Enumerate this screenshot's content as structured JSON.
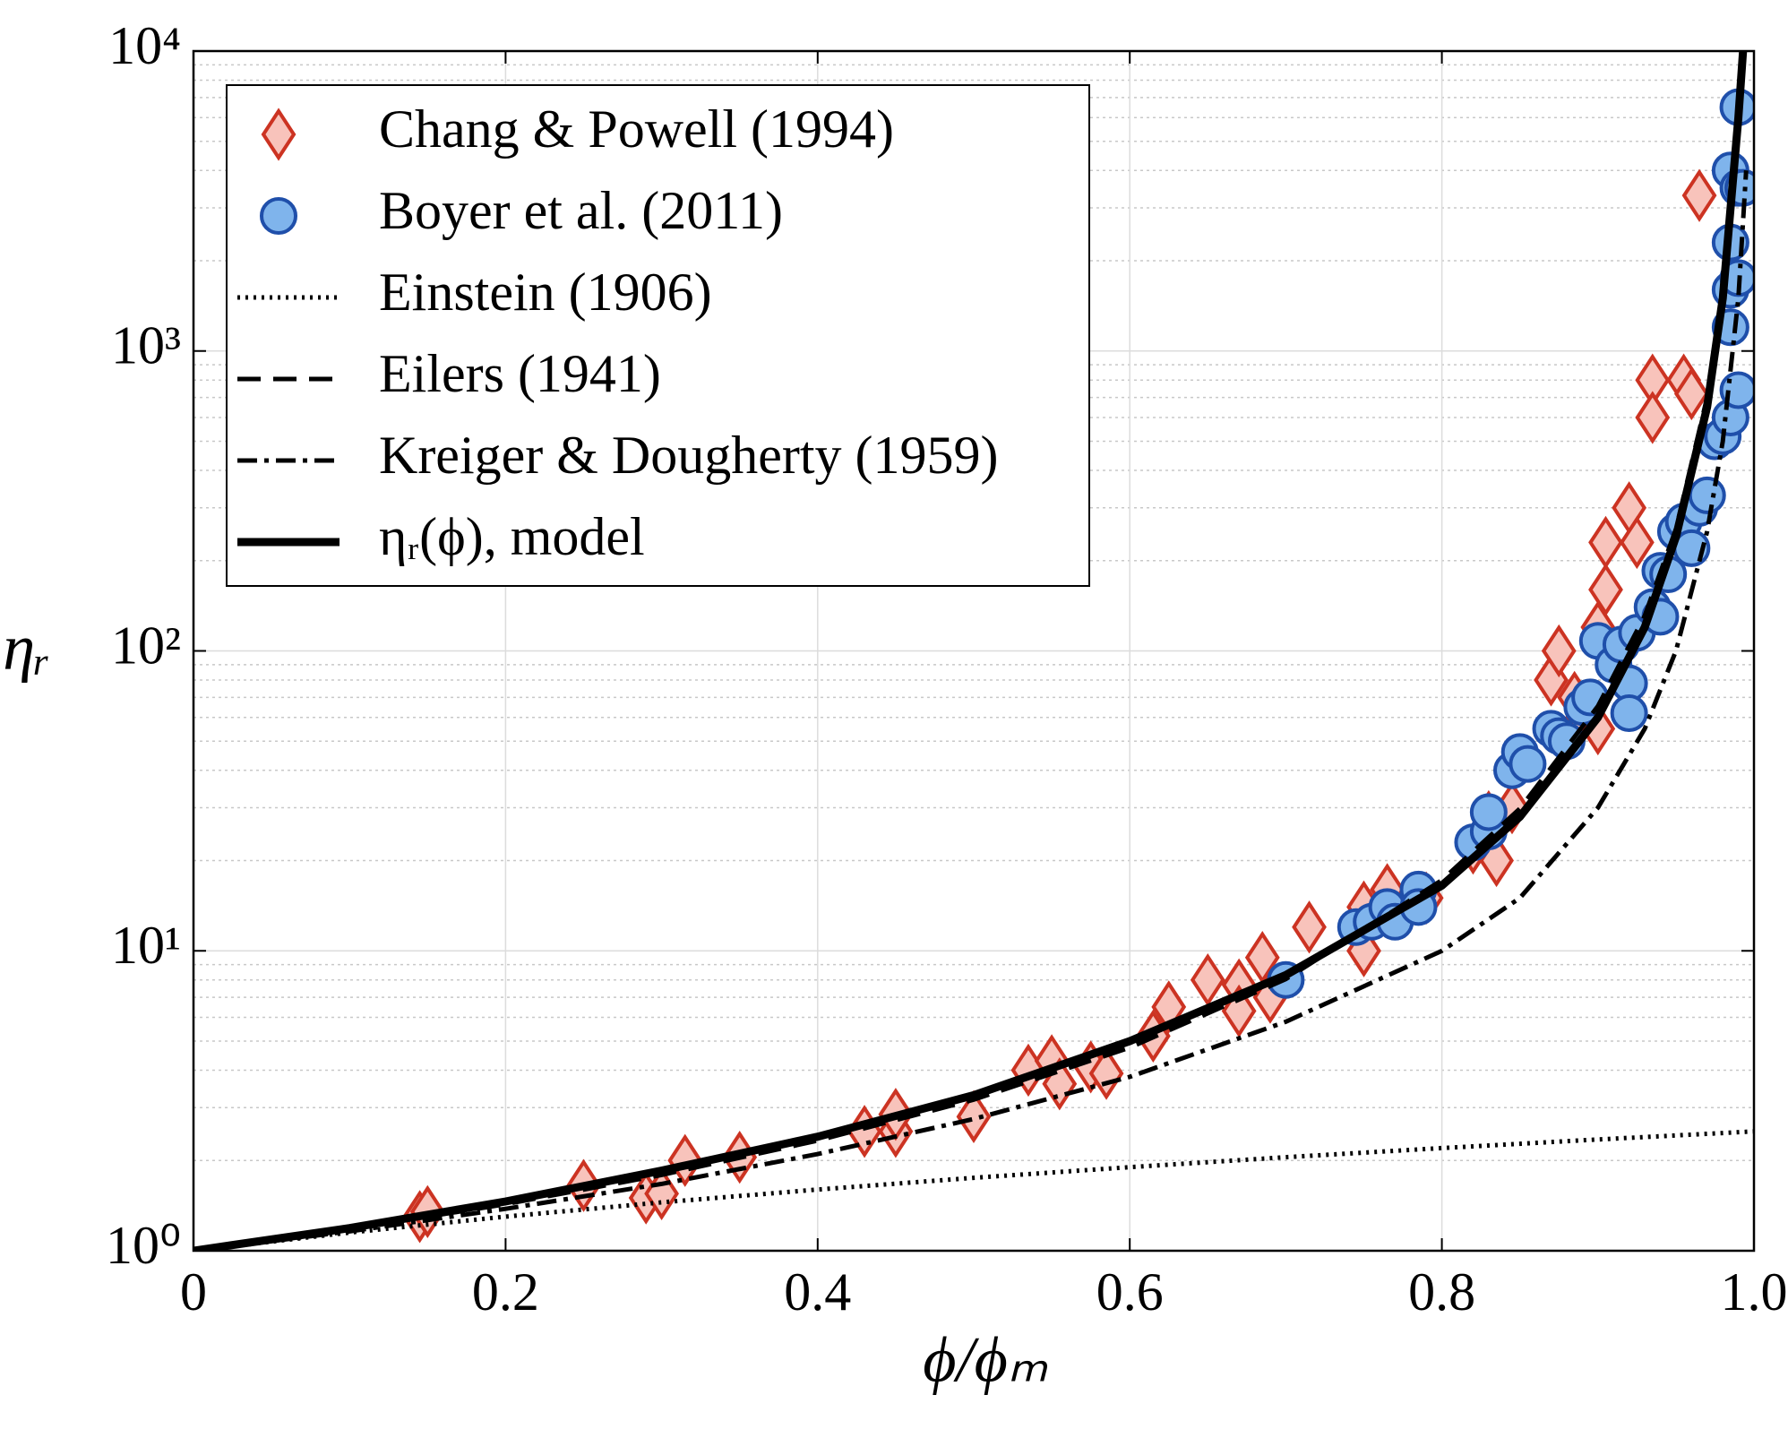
{
  "chart_data": {
    "type": "scatter",
    "xlabel": "ϕ/ϕₘ",
    "ylabel": "ηᵣ",
    "xlim": [
      0,
      1
    ],
    "xticks": [
      0,
      0.2,
      0.4,
      0.6,
      0.8,
      {
        "value": 1,
        "label": "1.0"
      }
    ],
    "ylim": [
      1,
      10000
    ],
    "log_y": true,
    "yticks": [
      {
        "value": 1,
        "label": "10⁰"
      },
      {
        "value": 10,
        "label": "10¹"
      },
      {
        "value": 100,
        "label": "10²"
      },
      {
        "value": 1000,
        "label": "10³"
      },
      {
        "value": 10000,
        "label": "10⁴"
      }
    ],
    "grid": true,
    "minor_grid": true,
    "legend": "upper left",
    "series": [
      {
        "name": "Chang & Powell (1994)",
        "marker": "diamond",
        "color": "#cc3322",
        "fill": "#f8c3bb",
        "x": [
          0.145,
          0.15,
          0.25,
          0.29,
          0.3,
          0.315,
          0.35,
          0.43,
          0.45,
          0.45,
          0.5,
          0.535,
          0.55,
          0.555,
          0.575,
          0.585,
          0.615,
          0.625,
          0.65,
          0.67,
          0.67,
          0.685,
          0.69,
          0.715,
          0.75,
          0.75,
          0.765,
          0.79,
          0.82,
          0.83,
          0.835,
          0.845,
          0.87,
          0.875,
          0.885,
          0.89,
          0.9,
          0.9,
          0.905,
          0.905,
          0.92,
          0.925,
          0.935,
          0.935,
          0.955,
          0.96,
          0.965
        ],
        "values": [
          1.3,
          1.35,
          1.65,
          1.5,
          1.55,
          2.0,
          2.05,
          2.5,
          2.5,
          2.85,
          2.8,
          4.0,
          4.3,
          3.6,
          4.1,
          3.9,
          5.2,
          6.5,
          8.0,
          7.7,
          6.3,
          9.5,
          7.0,
          12,
          14,
          10,
          16,
          15,
          22,
          28,
          20,
          30,
          80,
          100,
          70,
          60,
          55,
          120,
          160,
          230,
          300,
          230,
          800,
          600,
          800,
          720,
          3300
        ]
      },
      {
        "name": "Boyer et al. (2011)",
        "marker": "circle",
        "color": "#1f4faa",
        "fill": "#7fb4ec",
        "x": [
          0.7,
          0.745,
          0.755,
          0.765,
          0.77,
          0.785,
          0.785,
          0.82,
          0.83,
          0.83,
          0.845,
          0.85,
          0.855,
          0.87,
          0.875,
          0.88,
          0.89,
          0.895,
          0.9,
          0.91,
          0.915,
          0.92,
          0.92,
          0.925,
          0.935,
          0.94,
          0.94,
          0.945,
          0.95,
          0.955,
          0.96,
          0.965,
          0.97,
          0.975,
          0.98,
          0.985,
          0.99,
          0.985,
          0.985,
          0.99,
          0.985,
          0.985,
          0.99,
          0.993,
          0.99
        ],
        "values": [
          8,
          12,
          12.5,
          14,
          12.5,
          16,
          14,
          23,
          25,
          29,
          40,
          46,
          42,
          55,
          52,
          50,
          65,
          70,
          108,
          90,
          105,
          78,
          62,
          115,
          140,
          185,
          130,
          180,
          250,
          270,
          220,
          300,
          330,
          500,
          520,
          600,
          740,
          1200,
          1600,
          1750,
          2300,
          4000,
          3500,
          3500,
          6500
        ]
      },
      {
        "name": "Einstein (1906)",
        "line_style": "dotted",
        "color": "#000000",
        "x": [
          0,
          0.1,
          0.2,
          0.3,
          0.4,
          0.5,
          0.6,
          0.7,
          0.8,
          0.9,
          1
        ],
        "values": [
          1,
          1.15,
          1.3,
          1.45,
          1.6,
          1.75,
          1.9,
          2.05,
          2.2,
          2.35,
          2.5
        ]
      },
      {
        "name": "Eilers (1941)",
        "line_style": "dashed",
        "color": "#000000",
        "x": [
          0,
          0.1,
          0.2,
          0.3,
          0.4,
          0.5,
          0.6,
          0.7,
          0.8,
          0.85,
          0.9,
          0.93,
          0.95,
          0.97,
          0.98,
          0.99,
          0.992
        ],
        "values": [
          1,
          1.18,
          1.43,
          1.79,
          2.33,
          3.19,
          4.76,
          8.05,
          17.2,
          29.8,
          65.4,
          131,
          255,
          700,
          1568,
          6240,
          9732
        ]
      },
      {
        "name": "Kreiger & Dougherty (1959)",
        "line_style": "dashdot",
        "color": "#000000",
        "x": [
          0,
          0.1,
          0.2,
          0.3,
          0.4,
          0.5,
          0.6,
          0.7,
          0.8,
          0.85,
          0.9,
          0.93,
          0.95,
          0.97,
          0.98,
          0.99,
          0.995
        ],
        "values": [
          1,
          1.16,
          1.38,
          1.67,
          2.1,
          2.75,
          3.8,
          5.8,
          10,
          15,
          30,
          55,
          100,
          250,
          500,
          1500,
          4000
        ]
      },
      {
        "name": "ηᵣ(ϕ), model",
        "line_style": "solid",
        "color": "#000000",
        "x": [
          0,
          0.1,
          0.2,
          0.3,
          0.4,
          0.5,
          0.6,
          0.7,
          0.8,
          0.85,
          0.9,
          0.93,
          0.95,
          0.97,
          0.98,
          0.99,
          0.993
        ],
        "values": [
          1,
          1.19,
          1.46,
          1.85,
          2.4,
          3.3,
          5.0,
          8.3,
          16.5,
          28,
          60,
          120,
          240,
          650,
          1500,
          6000,
          10000
        ]
      }
    ]
  }
}
